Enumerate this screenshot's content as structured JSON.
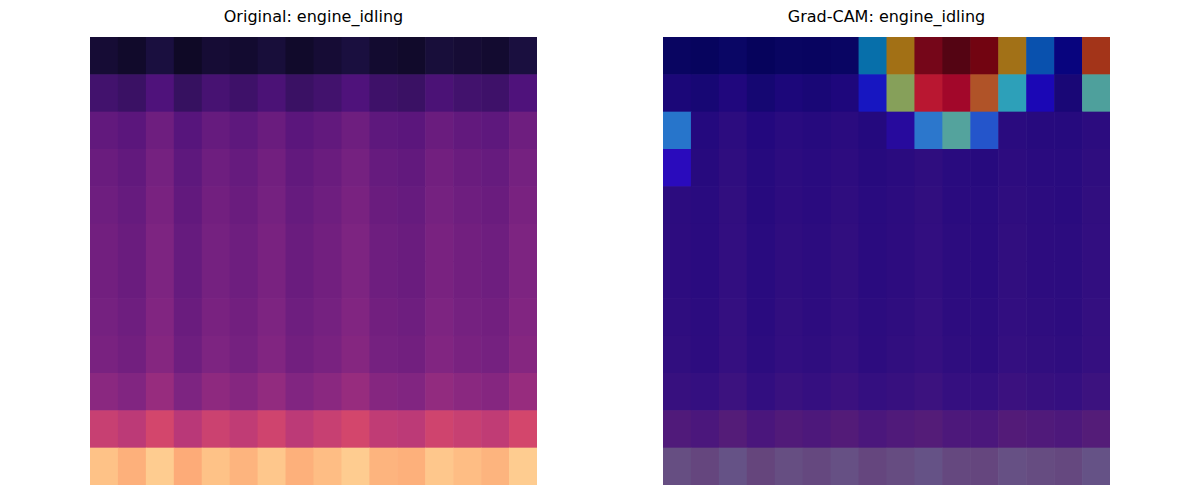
{
  "chart_data": [
    {
      "type": "heatmap",
      "title": "Original: engine_idling",
      "tick_labels": false,
      "zlim": [
        0,
        1
      ],
      "cells": [
        [
          0.1,
          0.08,
          0.12,
          0.07,
          0.1,
          0.09,
          0.11,
          0.08,
          0.1,
          0.12,
          0.09,
          0.08,
          0.11,
          0.1,
          0.09,
          0.12
        ],
        [
          0.22,
          0.2,
          0.25,
          0.19,
          0.23,
          0.21,
          0.24,
          0.2,
          0.22,
          0.25,
          0.21,
          0.2,
          0.24,
          0.22,
          0.21,
          0.25
        ],
        [
          0.3,
          0.28,
          0.33,
          0.27,
          0.31,
          0.29,
          0.32,
          0.28,
          0.3,
          0.33,
          0.29,
          0.28,
          0.32,
          0.3,
          0.29,
          0.33
        ],
        [
          0.32,
          0.3,
          0.35,
          0.29,
          0.33,
          0.31,
          0.34,
          0.3,
          0.32,
          0.35,
          0.31,
          0.3,
          0.34,
          0.32,
          0.31,
          0.35
        ],
        [
          0.33,
          0.31,
          0.36,
          0.3,
          0.34,
          0.32,
          0.35,
          0.31,
          0.33,
          0.36,
          0.32,
          0.31,
          0.35,
          0.33,
          0.32,
          0.36
        ],
        [
          0.34,
          0.32,
          0.37,
          0.31,
          0.35,
          0.33,
          0.36,
          0.32,
          0.34,
          0.37,
          0.33,
          0.32,
          0.36,
          0.34,
          0.33,
          0.37
        ],
        [
          0.34,
          0.32,
          0.37,
          0.31,
          0.35,
          0.33,
          0.36,
          0.32,
          0.34,
          0.37,
          0.33,
          0.32,
          0.36,
          0.34,
          0.33,
          0.37
        ],
        [
          0.35,
          0.33,
          0.38,
          0.32,
          0.36,
          0.34,
          0.37,
          0.33,
          0.35,
          0.38,
          0.34,
          0.33,
          0.37,
          0.35,
          0.34,
          0.38
        ],
        [
          0.36,
          0.34,
          0.39,
          0.33,
          0.37,
          0.35,
          0.38,
          0.34,
          0.36,
          0.39,
          0.35,
          0.34,
          0.38,
          0.36,
          0.35,
          0.39
        ],
        [
          0.4,
          0.38,
          0.43,
          0.37,
          0.41,
          0.39,
          0.42,
          0.38,
          0.4,
          0.43,
          0.39,
          0.38,
          0.42,
          0.4,
          0.39,
          0.43
        ],
        [
          0.55,
          0.52,
          0.58,
          0.51,
          0.56,
          0.53,
          0.57,
          0.52,
          0.55,
          0.58,
          0.53,
          0.52,
          0.57,
          0.55,
          0.53,
          0.58
        ],
        [
          0.88,
          0.84,
          0.9,
          0.83,
          0.88,
          0.85,
          0.89,
          0.84,
          0.87,
          0.9,
          0.85,
          0.84,
          0.89,
          0.87,
          0.85,
          0.9
        ]
      ]
    },
    {
      "type": "heatmap_overlay",
      "title": "Grad-CAM: engine_idling",
      "tick_labels": false,
      "zlim": [
        0,
        1
      ],
      "cells": [
        [
          0,
          0,
          0,
          0,
          0,
          0,
          0,
          0.3,
          0.7,
          0.95,
          1.0,
          0.95,
          0.7,
          0.25,
          0.05,
          0.8
        ],
        [
          0,
          0,
          0,
          0,
          0,
          0,
          0,
          0.15,
          0.55,
          0.85,
          0.9,
          0.75,
          0.4,
          0.1,
          0,
          0.45
        ],
        [
          0.3,
          0,
          0,
          0,
          0,
          0,
          0,
          0,
          0.05,
          0.3,
          0.45,
          0.25,
          0,
          0,
          0,
          0
        ],
        [
          0.1,
          0,
          0,
          0,
          0,
          0,
          0,
          0,
          0,
          0,
          0,
          0,
          0,
          0,
          0,
          0
        ],
        [
          0,
          0,
          0,
          0,
          0,
          0,
          0,
          0,
          0,
          0,
          0,
          0,
          0,
          0,
          0,
          0
        ],
        [
          0,
          0,
          0,
          0,
          0,
          0,
          0,
          0,
          0,
          0,
          0,
          0,
          0,
          0,
          0,
          0
        ],
        [
          0,
          0,
          0,
          0,
          0,
          0,
          0,
          0,
          0,
          0,
          0,
          0,
          0,
          0,
          0,
          0
        ],
        [
          0,
          0,
          0,
          0,
          0,
          0,
          0,
          0,
          0,
          0,
          0,
          0,
          0,
          0,
          0,
          0
        ],
        [
          0,
          0,
          0,
          0,
          0,
          0,
          0,
          0,
          0,
          0,
          0,
          0,
          0,
          0,
          0,
          0
        ],
        [
          0,
          0,
          0,
          0,
          0,
          0,
          0,
          0,
          0,
          0,
          0,
          0,
          0,
          0,
          0,
          0
        ],
        [
          0,
          0,
          0,
          0,
          0,
          0,
          0,
          0,
          0,
          0,
          0,
          0,
          0,
          0,
          0,
          0
        ],
        [
          0,
          0,
          0,
          0,
          0,
          0,
          0,
          0,
          0,
          0,
          0,
          0,
          0,
          0,
          0,
          0
        ]
      ]
    }
  ]
}
